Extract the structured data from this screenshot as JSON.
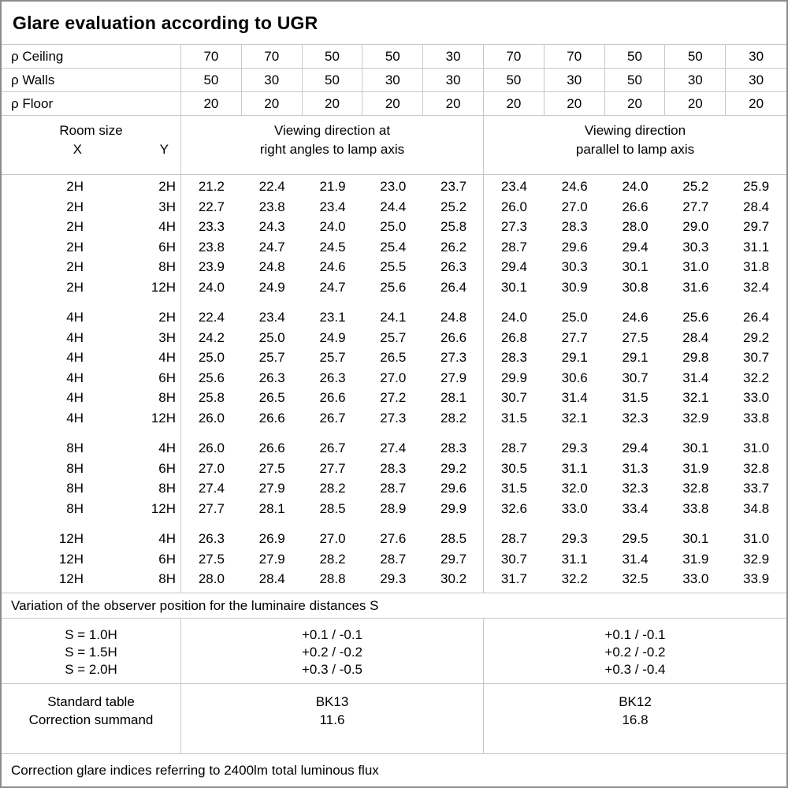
{
  "title": "Glare evaluation according to UGR",
  "gridline_color": "#c8c8c8",
  "frame_color": "#8c8c8c",
  "reflectance": {
    "rows": [
      {
        "label": "ρ Ceiling",
        "values": [
          "70",
          "70",
          "50",
          "50",
          "30",
          "70",
          "70",
          "50",
          "50",
          "30"
        ]
      },
      {
        "label": "ρ Walls",
        "values": [
          "50",
          "30",
          "50",
          "30",
          "30",
          "50",
          "30",
          "50",
          "30",
          "30"
        ]
      },
      {
        "label": "ρ Floor",
        "values": [
          "20",
          "20",
          "20",
          "20",
          "20",
          "20",
          "20",
          "20",
          "20",
          "20"
        ]
      }
    ]
  },
  "header": {
    "room_size": "Room size",
    "x_label": "X",
    "y_label": "Y",
    "left_heading_lines": [
      "Viewing direction at",
      "right angles to lamp axis"
    ],
    "right_heading_lines": [
      "Viewing direction",
      "parallel to lamp axis"
    ]
  },
  "body": {
    "groups": [
      {
        "rows": [
          {
            "x": "2H",
            "y": "2H",
            "values": [
              "21.2",
              "22.4",
              "21.9",
              "23.0",
              "23.7",
              "23.4",
              "24.6",
              "24.0",
              "25.2",
              "25.9"
            ]
          },
          {
            "x": "2H",
            "y": "3H",
            "values": [
              "22.7",
              "23.8",
              "23.4",
              "24.4",
              "25.2",
              "26.0",
              "27.0",
              "26.6",
              "27.7",
              "28.4"
            ]
          },
          {
            "x": "2H",
            "y": "4H",
            "values": [
              "23.3",
              "24.3",
              "24.0",
              "25.0",
              "25.8",
              "27.3",
              "28.3",
              "28.0",
              "29.0",
              "29.7"
            ]
          },
          {
            "x": "2H",
            "y": "6H",
            "values": [
              "23.8",
              "24.7",
              "24.5",
              "25.4",
              "26.2",
              "28.7",
              "29.6",
              "29.4",
              "30.3",
              "31.1"
            ]
          },
          {
            "x": "2H",
            "y": "8H",
            "values": [
              "23.9",
              "24.8",
              "24.6",
              "25.5",
              "26.3",
              "29.4",
              "30.3",
              "30.1",
              "31.0",
              "31.8"
            ]
          },
          {
            "x": "2H",
            "y": "12H",
            "values": [
              "24.0",
              "24.9",
              "24.7",
              "25.6",
              "26.4",
              "30.1",
              "30.9",
              "30.8",
              "31.6",
              "32.4"
            ]
          }
        ]
      },
      {
        "rows": [
          {
            "x": "4H",
            "y": "2H",
            "values": [
              "22.4",
              "23.4",
              "23.1",
              "24.1",
              "24.8",
              "24.0",
              "25.0",
              "24.6",
              "25.6",
              "26.4"
            ]
          },
          {
            "x": "4H",
            "y": "3H",
            "values": [
              "24.2",
              "25.0",
              "24.9",
              "25.7",
              "26.6",
              "26.8",
              "27.7",
              "27.5",
              "28.4",
              "29.2"
            ]
          },
          {
            "x": "4H",
            "y": "4H",
            "values": [
              "25.0",
              "25.7",
              "25.7",
              "26.5",
              "27.3",
              "28.3",
              "29.1",
              "29.1",
              "29.8",
              "30.7"
            ]
          },
          {
            "x": "4H",
            "y": "6H",
            "values": [
              "25.6",
              "26.3",
              "26.3",
              "27.0",
              "27.9",
              "29.9",
              "30.6",
              "30.7",
              "31.4",
              "32.2"
            ]
          },
          {
            "x": "4H",
            "y": "8H",
            "values": [
              "25.8",
              "26.5",
              "26.6",
              "27.2",
              "28.1",
              "30.7",
              "31.4",
              "31.5",
              "32.1",
              "33.0"
            ]
          },
          {
            "x": "4H",
            "y": "12H",
            "values": [
              "26.0",
              "26.6",
              "26.7",
              "27.3",
              "28.2",
              "31.5",
              "32.1",
              "32.3",
              "32.9",
              "33.8"
            ]
          }
        ]
      },
      {
        "rows": [
          {
            "x": "8H",
            "y": "4H",
            "values": [
              "26.0",
              "26.6",
              "26.7",
              "27.4",
              "28.3",
              "28.7",
              "29.3",
              "29.4",
              "30.1",
              "31.0"
            ]
          },
          {
            "x": "8H",
            "y": "6H",
            "values": [
              "27.0",
              "27.5",
              "27.7",
              "28.3",
              "29.2",
              "30.5",
              "31.1",
              "31.3",
              "31.9",
              "32.8"
            ]
          },
          {
            "x": "8H",
            "y": "8H",
            "values": [
              "27.4",
              "27.9",
              "28.2",
              "28.7",
              "29.6",
              "31.5",
              "32.0",
              "32.3",
              "32.8",
              "33.7"
            ]
          },
          {
            "x": "8H",
            "y": "12H",
            "values": [
              "27.7",
              "28.1",
              "28.5",
              "28.9",
              "29.9",
              "32.6",
              "33.0",
              "33.4",
              "33.8",
              "34.8"
            ]
          }
        ]
      },
      {
        "rows": [
          {
            "x": "12H",
            "y": "4H",
            "values": [
              "26.3",
              "26.9",
              "27.0",
              "27.6",
              "28.5",
              "28.7",
              "29.3",
              "29.5",
              "30.1",
              "31.0"
            ]
          },
          {
            "x": "12H",
            "y": "6H",
            "values": [
              "27.5",
              "27.9",
              "28.2",
              "28.7",
              "29.7",
              "30.7",
              "31.1",
              "31.4",
              "31.9",
              "32.9"
            ]
          },
          {
            "x": "12H",
            "y": "8H",
            "values": [
              "28.0",
              "28.4",
              "28.8",
              "29.3",
              "30.2",
              "31.7",
              "32.2",
              "32.5",
              "33.0",
              "33.9"
            ]
          }
        ]
      }
    ]
  },
  "variation_note": "Variation of the observer position for the luminaire distances S",
  "variation": {
    "labels": [
      "S = 1.0H",
      "S = 1.5H",
      "S = 2.0H"
    ],
    "right_angles_values": [
      "+0.1 / -0.1",
      "+0.2 / -0.2",
      "+0.3 / -0.5"
    ],
    "parallel_values": [
      "+0.1 / -0.1",
      "+0.2 / -0.2",
      "+0.3 / -0.4"
    ]
  },
  "summary": {
    "rows": [
      {
        "label": "Standard table",
        "right_angles": "BK13",
        "parallel": "BK12"
      },
      {
        "label": "Correction summand",
        "right_angles": "11.6",
        "parallel": "16.8"
      }
    ]
  },
  "footer_note": "Correction glare indices referring to 2400lm total luminous flux"
}
